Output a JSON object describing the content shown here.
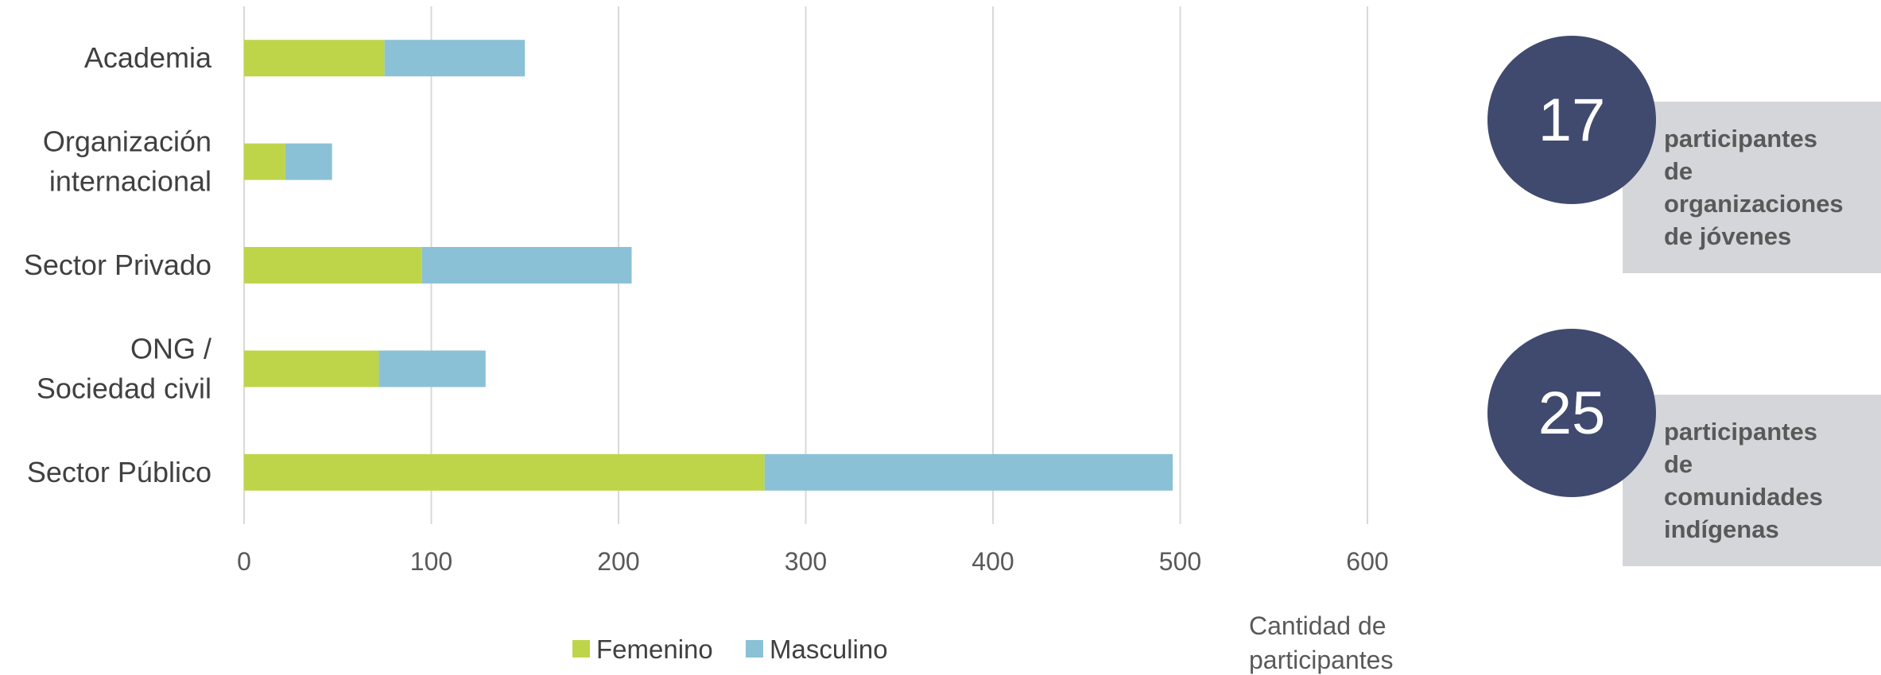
{
  "chart_data": {
    "type": "bar",
    "orientation": "horizontal",
    "stacked": true,
    "categories": [
      "Academia",
      "Organización internacional",
      "Sector Privado",
      "ONG / Sociedad civil",
      "Sector Público"
    ],
    "category_lines": [
      [
        "Academia"
      ],
      [
        "Organización",
        "internacional"
      ],
      [
        "Sector Privado"
      ],
      [
        "ONG /",
        "Sociedad civil"
      ],
      [
        "Sector Público"
      ]
    ],
    "series": [
      {
        "name": "Femenino",
        "color": "#bed54a",
        "values": [
          75,
          22,
          95,
          72,
          278
        ]
      },
      {
        "name": "Masculino",
        "color": "#8bc1d6",
        "values": [
          75,
          25,
          112,
          57,
          218
        ]
      }
    ],
    "xlabel": "Cantidad de participantes",
    "xlabel_lines": [
      "Cantidad de",
      "participantes"
    ],
    "xlim": [
      0,
      600
    ],
    "xticks": [
      "0",
      "100",
      "200",
      "300",
      "400",
      "500",
      "600"
    ],
    "grid": "vertical",
    "legend_position": "bottom"
  },
  "stats": [
    {
      "number": "17",
      "text": "participantes de organizaciones de jóvenes"
    },
    {
      "number": "25",
      "text": "participantes de comunidades indígenas"
    }
  ],
  "colors": {
    "circle": "#404a6e",
    "box": "#d5d6da",
    "grid": "#d9d9d9"
  }
}
